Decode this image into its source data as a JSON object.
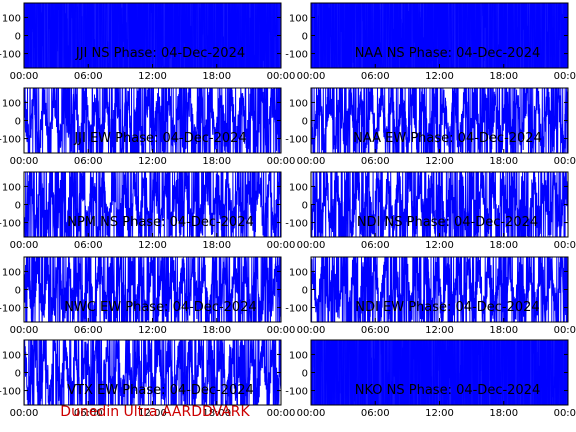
{
  "footer_text": "Dunedin Ultra AARDDVARK",
  "colors": {
    "trace": "#0000ff",
    "axes": "#000000",
    "background": "#ffffff",
    "footer": "#cc0000"
  },
  "chart_data": {
    "type": "line",
    "layout": "5x2 grid",
    "x_ticks": [
      "00:00",
      "06:00",
      "12:00",
      "18:00",
      "00:00"
    ],
    "x_range_hours": [
      0,
      24
    ],
    "y_ticks": [
      100,
      0,
      -100
    ],
    "ylim": [
      -180,
      180
    ],
    "panels": [
      {
        "label": "JJI NS Phase: 04-Dec-2024",
        "pattern": "saturated"
      },
      {
        "label": "NAA NS Phase: 04-Dec-2024",
        "pattern": "saturated"
      },
      {
        "label": "JJI EW Phase: 04-Dec-2024",
        "pattern": "dense"
      },
      {
        "label": "NAA EW Phase: 04-Dec-2024",
        "pattern": "dense"
      },
      {
        "label": "NPM NS Phase: 04-Dec-2024",
        "pattern": "dense"
      },
      {
        "label": "NDI NS Phase: 04-Dec-2024",
        "pattern": "dense"
      },
      {
        "label": "NWC EW Phase: 04-Dec-2024",
        "pattern": "dense"
      },
      {
        "label": "NDI EW Phase: 04-Dec-2024",
        "pattern": "dense"
      },
      {
        "label": "VTX EW Phase: 04-Dec-2024",
        "pattern": "dense"
      },
      {
        "label": "NKO NS Phase: 04-Dec-2024",
        "pattern": "saturated"
      }
    ]
  }
}
